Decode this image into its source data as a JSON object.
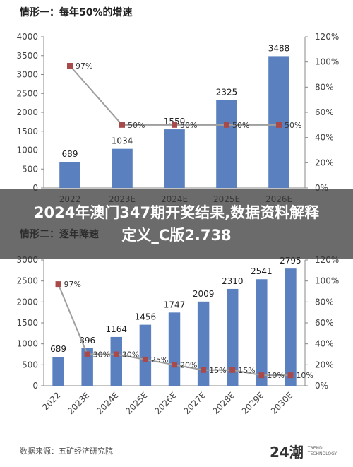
{
  "chart_data": [
    {
      "type": "bar",
      "title": "情形一：每年50%的增速",
      "categories": [
        "2022",
        "2023E",
        "2024E",
        "2025E",
        "2026E"
      ],
      "series": [
        {
          "axis": "left",
          "kind": "bar",
          "values": [
            689,
            1034,
            1550,
            2325,
            3488
          ]
        },
        {
          "axis": "right",
          "kind": "line",
          "values": [
            0.97,
            0.5,
            0.5,
            0.5,
            0.5
          ],
          "labels": [
            "97%",
            "50%",
            "50%",
            "50%",
            "50%"
          ]
        }
      ],
      "ylim_left": [
        0,
        4000
      ],
      "yticks_left": [
        "0",
        "500",
        "1000",
        "1500",
        "2000",
        "2500",
        "3000",
        "3500",
        "4000"
      ],
      "ylim_right": [
        0,
        1.2
      ],
      "yticks_right": [
        "0%",
        "20%",
        "40%",
        "60%",
        "80%",
        "100%",
        "120%"
      ],
      "colors": {
        "bar": "#5b80c0",
        "line": "#9e9e9e",
        "marker": "#a94a4a"
      }
    },
    {
      "type": "bar",
      "title": "情形二：逐年降速",
      "categories": [
        "2022",
        "2023E",
        "2024E",
        "2025E",
        "2026E",
        "2027E",
        "2028E",
        "2029E",
        "2030E"
      ],
      "series": [
        {
          "axis": "left",
          "kind": "bar",
          "values": [
            689,
            896,
            1164,
            1456,
            1747,
            2009,
            2310,
            2541,
            2795
          ]
        },
        {
          "axis": "right",
          "kind": "line",
          "values": [
            0.97,
            0.3,
            0.3,
            0.25,
            0.2,
            0.15,
            0.15,
            0.1,
            0.1
          ],
          "labels": [
            "97%",
            "30%",
            "30%",
            "25%",
            "20%",
            "15%",
            "15%",
            "10%",
            "10%"
          ]
        }
      ],
      "ylim_left": [
        0,
        3000
      ],
      "yticks_left": [
        "0",
        "500",
        "1000",
        "1500",
        "2000",
        "2500",
        "3000"
      ],
      "ylim_right": [
        0,
        1.2
      ],
      "yticks_right": [
        "0%",
        "20%",
        "40%",
        "60%",
        "80%",
        "100%",
        "120%"
      ],
      "colors": {
        "bar": "#5b80c0",
        "line": "#9e9e9e",
        "marker": "#a94a4a"
      }
    }
  ],
  "overlay": {
    "headline": "2024年澳门347期开奖结果,数据资料解释定义_C版2.738"
  },
  "footer": {
    "source": "数据来源：五矿经济研究院",
    "logo_mark": "24潮",
    "logo_sub_1": "TREND",
    "logo_sub_2": "TECHNOLOGY"
  }
}
